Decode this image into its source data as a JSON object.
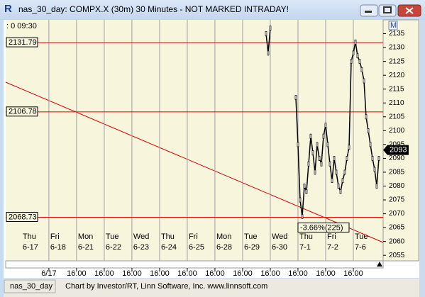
{
  "window": {
    "title": "nas_30_day: COMPX.X (30m) 30 Minutes - NOT MARKED INTRADAY!",
    "logo": "R",
    "status_left": "nas_30_day",
    "status_text": "Chart by Investor/RT, Linn Software, Inc. www.linnsoft.com",
    "cursor_info": ": 0  09:30",
    "menu_icon": "M"
  },
  "chart_data": {
    "type": "line",
    "color": "#000000",
    "categories": [
      "6-17",
      "6-18",
      "6-21",
      "6-22",
      "6-23",
      "6-24",
      "6-25",
      "6-28",
      "6-29",
      "6-30",
      "7-1",
      "7-2",
      "7-6"
    ],
    "weekdays": [
      "Thu",
      "Fri",
      "Mon",
      "Tue",
      "Wed",
      "Thu",
      "Fri",
      "Mon",
      "Tue",
      "Wed",
      "Thu",
      "Fri",
      "Tue"
    ],
    "time_labels": [
      "6/17",
      "16:00",
      "16:00",
      "16:00",
      "16:00",
      "16:00",
      "16:00",
      "16:00",
      "16:00",
      "16:00",
      "16:00",
      "16:00"
    ],
    "x": [
      115,
      116,
      117,
      128,
      129,
      130,
      131,
      132,
      133,
      134,
      135,
      136,
      137,
      138,
      139,
      140,
      141,
      142,
      143,
      144,
      145,
      146,
      147,
      148,
      149,
      150,
      151,
      152,
      153,
      154,
      155,
      156,
      157,
      158,
      159,
      160,
      161,
      162,
      163,
      164,
      165,
      166,
      167,
      168
    ],
    "values": [
      2135,
      2128,
      2137,
      null,
      2112,
      2095,
      2075,
      2069,
      2080,
      2078,
      2088,
      2098,
      2092,
      2085,
      2095,
      2090,
      2088,
      2098,
      2102,
      2095,
      2088,
      2082,
      2090,
      2085,
      2080,
      2078,
      2082,
      2085,
      2090,
      2094,
      2125,
      2128,
      2132,
      2127,
      2125,
      2122,
      2118,
      2105,
      2100,
      2095,
      2090,
      2086,
      2080,
      2090
    ],
    "xlim": [
      -7.3,
      170
    ],
    "ylim": [
      2053,
      2140
    ],
    "yticks": [
      2135,
      2130,
      2125,
      2120,
      2115,
      2110,
      2105,
      2100,
      2095,
      2090,
      2085,
      2080,
      2075,
      2070,
      2065,
      2060,
      2055
    ],
    "levels": [
      2131.79,
      2106.78,
      2068.73
    ],
    "level_color": "#e00000",
    "last_value": 2093,
    "annotation": "-3.66%(225)"
  }
}
